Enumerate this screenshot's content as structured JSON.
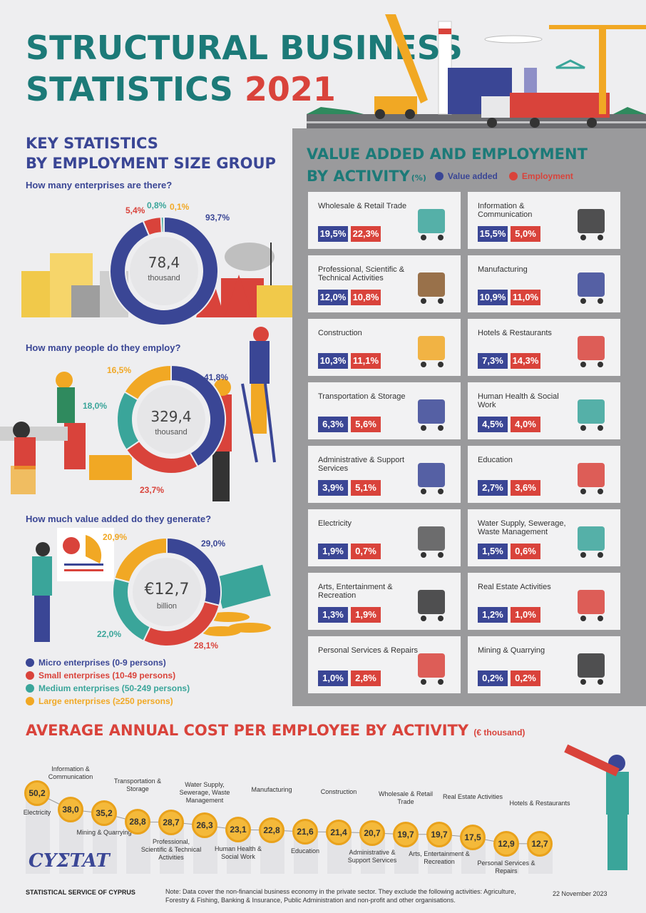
{
  "title": {
    "line1": "STRUCTURAL BUSINESS",
    "line2": "STATISTICS",
    "year": "2021"
  },
  "key_stats": {
    "heading_line1": "KEY STATISTICS",
    "heading_line2": "BY EMPLOYMENT SIZE GROUP",
    "enterprises": {
      "question": "How many enterprises are there?",
      "value": "78,4",
      "unit": "thousand",
      "labels": {
        "micro": "93,7%",
        "small": "5,4%",
        "medium": "0,8%",
        "large": "0,1%"
      }
    },
    "employment": {
      "question": "How many people do they employ?",
      "value": "329,4",
      "unit": "thousand",
      "labels": {
        "micro": "41,8%",
        "small": "23,7%",
        "medium": "18,0%",
        "large": "16,5%"
      }
    },
    "value_added": {
      "question": "How much value added do they generate?",
      "value": "€12,7",
      "unit": "billion",
      "labels": {
        "micro": "29,0%",
        "small": "28,1%",
        "medium": "22,0%",
        "large": "20,9%"
      }
    },
    "legend": [
      {
        "label": "Micro enterprises (0-9 persons)",
        "color": "#3a4695"
      },
      {
        "label": "Small enterprises (10-49 persons)",
        "color": "#d9433b"
      },
      {
        "label": "Medium enterprises (50-249 persons)",
        "color": "#3aa59a"
      },
      {
        "label": "Large enterprises (≥250 persons)",
        "color": "#f1a824"
      }
    ]
  },
  "activity": {
    "heading_line1": "VALUE ADDED AND EMPLOYMENT",
    "heading_line2": "BY ACTIVITY",
    "pct_unit": "(%)",
    "legend_va": "Value added",
    "legend_emp": "Employment",
    "cards": [
      {
        "name": "Wholesale & Retail Trade",
        "va": "19,5%",
        "emp": "22,3%",
        "icon": "cart-icon"
      },
      {
        "name": "Information & Communication",
        "va": "15,5%",
        "emp": "5,0%",
        "icon": "satellite-dish-icon"
      },
      {
        "name": "Professional, Scientific & Technical Activities",
        "va": "12,0%",
        "emp": "10,8%",
        "icon": "scales-icon"
      },
      {
        "name": "Manufacturing",
        "va": "10,9%",
        "emp": "11,0%",
        "icon": "robot-arm-icon"
      },
      {
        "name": "Construction",
        "va": "10,3%",
        "emp": "11,1%",
        "icon": "crane-icon"
      },
      {
        "name": "Hotels & Restaurants",
        "va": "7,3%",
        "emp": "14,3%",
        "icon": "hotel-icon"
      },
      {
        "name": "Transportation & Storage",
        "va": "6,3%",
        "emp": "5,6%",
        "icon": "plane-ship-icon"
      },
      {
        "name": "Human Health & Social Work",
        "va": "4,5%",
        "emp": "4,0%",
        "icon": "stethoscope-icon"
      },
      {
        "name": "Administrative & Support Services",
        "va": "3,9%",
        "emp": "5,1%",
        "icon": "headset-icon"
      },
      {
        "name": "Education",
        "va": "2,7%",
        "emp": "3,6%",
        "icon": "books-icon"
      },
      {
        "name": "Electricity",
        "va": "1,9%",
        "emp": "0,7%",
        "icon": "power-tower-icon"
      },
      {
        "name": "Water Supply, Sewerage, Waste Management",
        "va": "1,5%",
        "emp": "0,6%",
        "icon": "garbage-truck-icon"
      },
      {
        "name": "Arts, Entertainment & Recreation",
        "va": "1,3%",
        "emp": "1,9%",
        "icon": "theater-masks-icon"
      },
      {
        "name": "Real Estate Activities",
        "va": "1,2%",
        "emp": "1,0%",
        "icon": "building-icon"
      },
      {
        "name": "Personal Services & Repairs",
        "va": "1,0%",
        "emp": "2,8%",
        "icon": "tools-icon"
      },
      {
        "name": "Mining & Quarrying",
        "va": "0,2%",
        "emp": "0,2%",
        "icon": "mine-cart-icon"
      }
    ]
  },
  "cost": {
    "heading": "AVERAGE ANNUAL COST PER EMPLOYEE BY ACTIVITY",
    "unit": "(€ thousand)",
    "items": [
      {
        "label": "Electricity",
        "value": "50,2",
        "pos": "below"
      },
      {
        "label": "Information & Communication",
        "value": "38,0",
        "pos": "above"
      },
      {
        "label": "Mining & Quarrying",
        "value": "35,2",
        "pos": "below"
      },
      {
        "label": "Transportation & Storage",
        "value": "28,8",
        "pos": "above"
      },
      {
        "label": "Professional, Scientific & Technical Activities",
        "value": "28,7",
        "pos": "below"
      },
      {
        "label": "Water Supply, Sewerage, Waste Management",
        "value": "26,3",
        "pos": "above"
      },
      {
        "label": "Human Health & Social Work",
        "value": "23,1",
        "pos": "below"
      },
      {
        "label": "Manufacturing",
        "value": "22,8",
        "pos": "above"
      },
      {
        "label": "Education",
        "value": "21,6",
        "pos": "below"
      },
      {
        "label": "Construction",
        "value": "21,4",
        "pos": "above"
      },
      {
        "label": "Administrative & Support Services",
        "value": "20,7",
        "pos": "below"
      },
      {
        "label": "Wholesale & Retail Trade",
        "value": "19,7",
        "pos": "above"
      },
      {
        "label": "Arts, Entertainment & Recreation",
        "value": "19,7",
        "pos": "below"
      },
      {
        "label": "Real Estate Activities",
        "value": "17,5",
        "pos": "above"
      },
      {
        "label": "Personal Services & Repairs",
        "value": "12,9",
        "pos": "below"
      },
      {
        "label": "Hotels & Restaurants",
        "value": "12,7",
        "pos": "above"
      }
    ]
  },
  "footer": {
    "logo": "CYΣTAT",
    "org": "STATISTICAL SERVICE OF CYPRUS",
    "note": "Note: Data cover the non-financial business economy in the private sector. They exclude the following activities: Agriculture, Forestry & Fishing, Banking & Insurance, Public Administration and non-profit and other organisations.",
    "date": "22 November 2023"
  },
  "colors": {
    "micro": "#3a4695",
    "small": "#d9433b",
    "medium": "#3aa59a",
    "large": "#f1a824"
  }
}
